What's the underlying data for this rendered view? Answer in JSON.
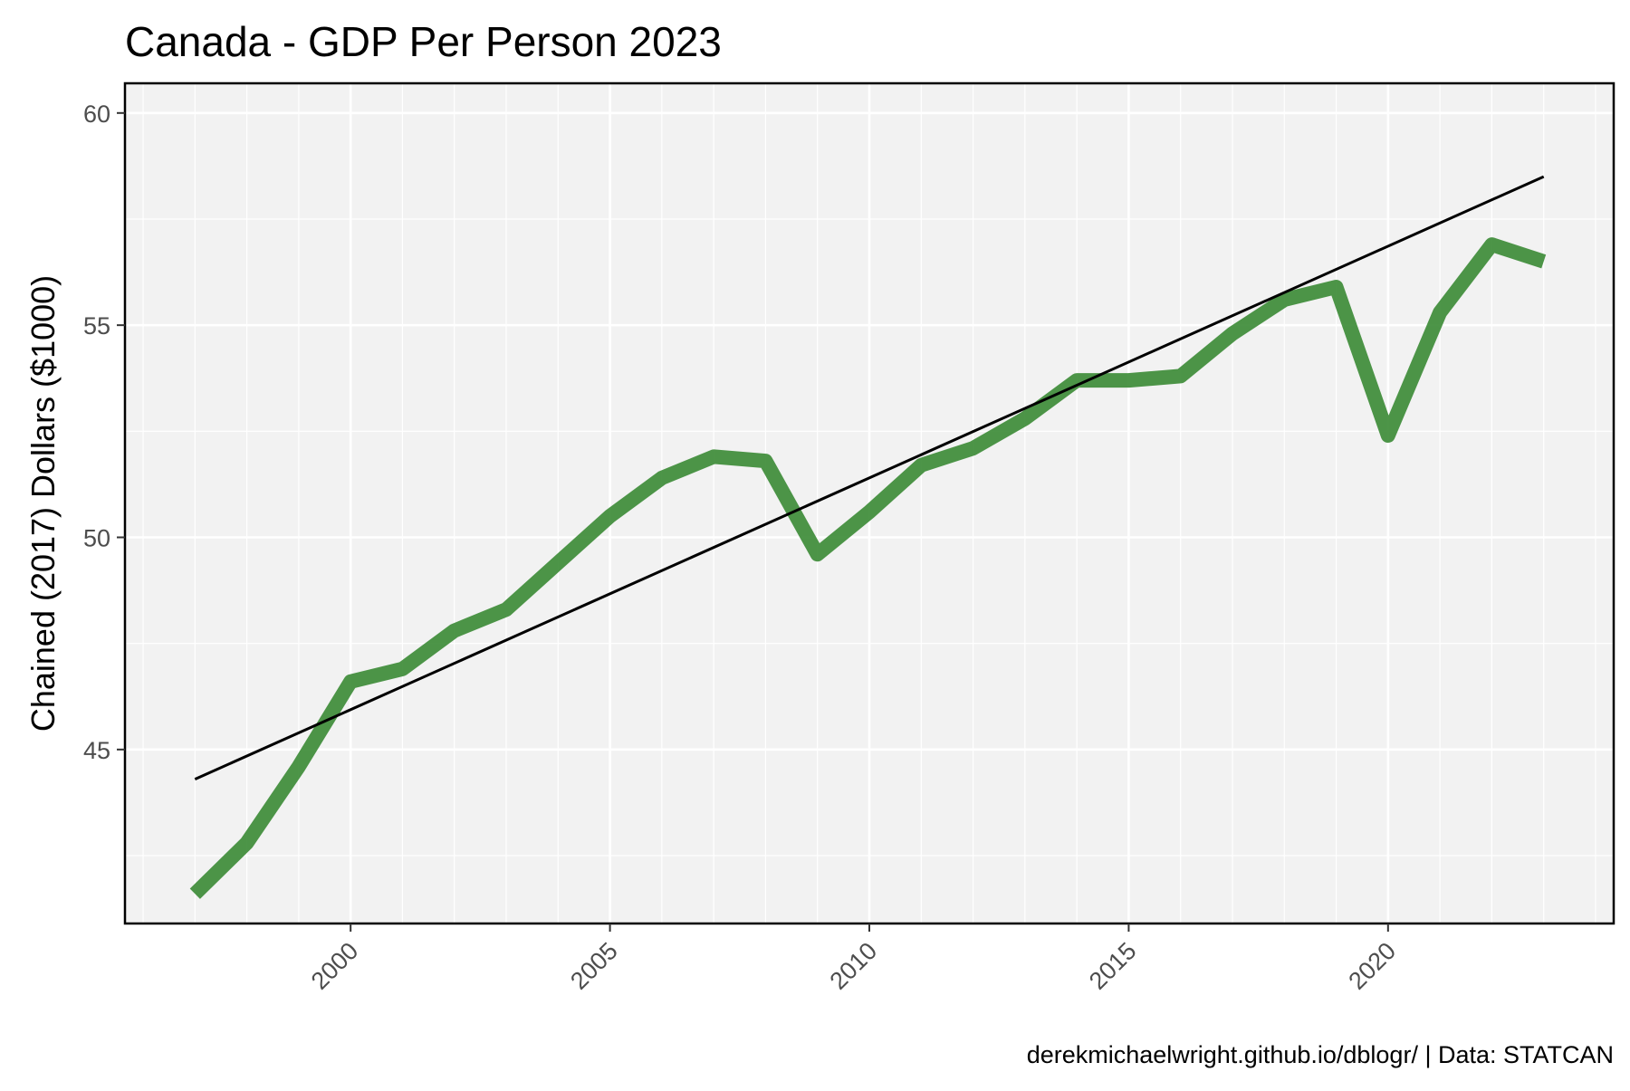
{
  "chart_data": {
    "type": "line",
    "title": "Canada - GDP Per Person 2023",
    "xlabel": "",
    "ylabel": "Chained (2017) Dollars ($1000)",
    "caption": "derekmichaelwright.github.io/dblogr/ | Data: STATCAN",
    "xlim": [
      1995.65,
      2024.35
    ],
    "ylim": [
      40.9,
      60.7
    ],
    "x_ticks": [
      2000,
      2005,
      2010,
      2015,
      2020
    ],
    "y_ticks": [
      45,
      50,
      55,
      60
    ],
    "grid": true,
    "legend": "none",
    "series": [
      {
        "color": "#3a8a34",
        "x": [
          1997,
          1998,
          1999,
          2000,
          2001,
          2002,
          2003,
          2004,
          2005,
          2006,
          2007,
          2008,
          2009,
          2010,
          2011,
          2012,
          2013,
          2014,
          2015,
          2016,
          2017,
          2018,
          2019,
          2020,
          2021,
          2022,
          2023
        ],
        "y": [
          41.6,
          42.8,
          44.6,
          46.6,
          46.9,
          47.8,
          48.3,
          49.4,
          50.5,
          51.4,
          51.9,
          51.8,
          49.6,
          50.6,
          51.7,
          52.1,
          52.8,
          53.7,
          53.7,
          53.8,
          54.8,
          55.6,
          55.9,
          52.4,
          55.3,
          56.9,
          56.5
        ]
      },
      {
        "color": "#000000",
        "x": [
          1997,
          2023
        ],
        "y": [
          44.3,
          58.5
        ]
      }
    ]
  }
}
